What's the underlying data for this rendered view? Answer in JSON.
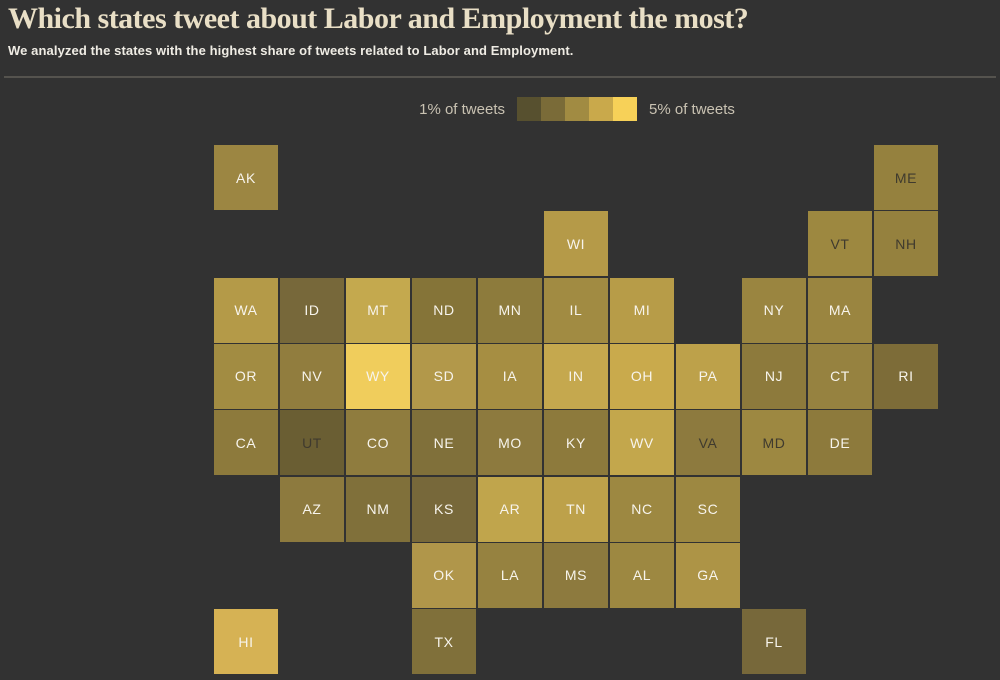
{
  "page": {
    "background": "#323232"
  },
  "header": {
    "title": "Which states tweet about Labor and Employment the most?",
    "subtitle": "We analyzed the states with the highest share of tweets related to Labor and Employment."
  },
  "legend": {
    "min_label": "1% of tweets",
    "max_label": "5% of tweets",
    "swatches": [
      "#57502f",
      "#7a6b38",
      "#a18b42",
      "#c9a94b",
      "#f7d158"
    ]
  },
  "chart_data": {
    "type": "heatmap",
    "subtype": "tile-grid-cartogram-usa",
    "title": "Which states tweet about Labor and Employment the most?",
    "unit": "% of tweets",
    "scale": {
      "min_pct": 1,
      "max_pct": 5,
      "colors": [
        "#57502f",
        "#7a6b38",
        "#a18b42",
        "#c9a94b",
        "#f7d158"
      ]
    },
    "states": [
      {
        "abbr": "AK",
        "row": 0,
        "col": 0,
        "color": "#9c8642",
        "text": "light",
        "value_pct_est": 2.5
      },
      {
        "abbr": "ME",
        "row": 0,
        "col": 10,
        "color": "#95813e",
        "text": "dark",
        "value_pct_est": 2.3
      },
      {
        "abbr": "WI",
        "row": 1,
        "col": 5,
        "color": "#b59a48",
        "text": "light",
        "value_pct_est": 3.5
      },
      {
        "abbr": "VT",
        "row": 1,
        "col": 9,
        "color": "#9d8840",
        "text": "dark",
        "value_pct_est": 2.6
      },
      {
        "abbr": "NH",
        "row": 1,
        "col": 10,
        "color": "#95813e",
        "text": "dark",
        "value_pct_est": 2.3
      },
      {
        "abbr": "WA",
        "row": 2,
        "col": 0,
        "color": "#b49a48",
        "text": "light",
        "value_pct_est": 3.4
      },
      {
        "abbr": "ID",
        "row": 2,
        "col": 1,
        "color": "#77683a",
        "text": "light",
        "value_pct_est": 1.6
      },
      {
        "abbr": "MT",
        "row": 2,
        "col": 2,
        "color": "#c4a94e",
        "text": "light",
        "value_pct_est": 3.9
      },
      {
        "abbr": "ND",
        "row": 2,
        "col": 3,
        "color": "#857438",
        "text": "light",
        "value_pct_est": 1.9
      },
      {
        "abbr": "MN",
        "row": 2,
        "col": 4,
        "color": "#8d7b3c",
        "text": "light",
        "value_pct_est": 2.1
      },
      {
        "abbr": "IL",
        "row": 2,
        "col": 5,
        "color": "#a18b42",
        "text": "light",
        "value_pct_est": 3.0
      },
      {
        "abbr": "MI",
        "row": 2,
        "col": 6,
        "color": "#b79c48",
        "text": "light",
        "value_pct_est": 3.5
      },
      {
        "abbr": "NY",
        "row": 2,
        "col": 8,
        "color": "#9a8540",
        "text": "light",
        "value_pct_est": 2.5
      },
      {
        "abbr": "MA",
        "row": 2,
        "col": 9,
        "color": "#9a8540",
        "text": "light",
        "value_pct_est": 2.5
      },
      {
        "abbr": "OR",
        "row": 3,
        "col": 0,
        "color": "#a28c42",
        "text": "light",
        "value_pct_est": 3.0
      },
      {
        "abbr": "NV",
        "row": 3,
        "col": 1,
        "color": "#917d3e",
        "text": "light",
        "value_pct_est": 2.2
      },
      {
        "abbr": "WY",
        "row": 3,
        "col": 2,
        "color": "#f0cd5c",
        "text": "light",
        "value_pct_est": 5.0
      },
      {
        "abbr": "SD",
        "row": 3,
        "col": 3,
        "color": "#b2984a",
        "text": "light",
        "value_pct_est": 3.4
      },
      {
        "abbr": "IA",
        "row": 3,
        "col": 4,
        "color": "#a68e42",
        "text": "light",
        "value_pct_est": 3.1
      },
      {
        "abbr": "IN",
        "row": 3,
        "col": 5,
        "color": "#c5a84e",
        "text": "light",
        "value_pct_est": 3.9
      },
      {
        "abbr": "OH",
        "row": 3,
        "col": 6,
        "color": "#c9aa4c",
        "text": "light",
        "value_pct_est": 4.0
      },
      {
        "abbr": "PA",
        "row": 3,
        "col": 7,
        "color": "#bda14a",
        "text": "light",
        "value_pct_est": 3.7
      },
      {
        "abbr": "NJ",
        "row": 3,
        "col": 8,
        "color": "#8d7a3c",
        "text": "light",
        "value_pct_est": 2.1
      },
      {
        "abbr": "CT",
        "row": 3,
        "col": 9,
        "color": "#968240",
        "text": "light",
        "value_pct_est": 2.4
      },
      {
        "abbr": "RI",
        "row": 3,
        "col": 10,
        "color": "#7d6c38",
        "text": "light",
        "value_pct_est": 1.7
      },
      {
        "abbr": "CA",
        "row": 4,
        "col": 0,
        "color": "#8d7a3c",
        "text": "light",
        "value_pct_est": 2.1
      },
      {
        "abbr": "UT",
        "row": 4,
        "col": 1,
        "color": "#6a5e33",
        "text": "dark",
        "value_pct_est": 1.3
      },
      {
        "abbr": "CO",
        "row": 4,
        "col": 2,
        "color": "#8f7c3e",
        "text": "light",
        "value_pct_est": 2.2
      },
      {
        "abbr": "NE",
        "row": 4,
        "col": 3,
        "color": "#80703a",
        "text": "light",
        "value_pct_est": 1.8
      },
      {
        "abbr": "MO",
        "row": 4,
        "col": 4,
        "color": "#8d7a3e",
        "text": "light",
        "value_pct_est": 2.1
      },
      {
        "abbr": "KY",
        "row": 4,
        "col": 5,
        "color": "#8d7a3c",
        "text": "light",
        "value_pct_est": 2.1
      },
      {
        "abbr": "WV",
        "row": 4,
        "col": 6,
        "color": "#c3a74c",
        "text": "light",
        "value_pct_est": 3.9
      },
      {
        "abbr": "VA",
        "row": 4,
        "col": 7,
        "color": "#8d7a3e",
        "text": "dark",
        "value_pct_est": 2.1
      },
      {
        "abbr": "MD",
        "row": 4,
        "col": 8,
        "color": "#9d8841",
        "text": "dark",
        "value_pct_est": 2.6
      },
      {
        "abbr": "DE",
        "row": 4,
        "col": 9,
        "color": "#8d7a3c",
        "text": "light",
        "value_pct_est": 2.1
      },
      {
        "abbr": "AZ",
        "row": 5,
        "col": 1,
        "color": "#8d7a3e",
        "text": "light",
        "value_pct_est": 2.1
      },
      {
        "abbr": "NM",
        "row": 5,
        "col": 2,
        "color": "#80703a",
        "text": "light",
        "value_pct_est": 1.8
      },
      {
        "abbr": "KS",
        "row": 5,
        "col": 3,
        "color": "#77683a",
        "text": "light",
        "value_pct_est": 1.6
      },
      {
        "abbr": "AR",
        "row": 5,
        "col": 4,
        "color": "#c0a54c",
        "text": "light",
        "value_pct_est": 3.8
      },
      {
        "abbr": "TN",
        "row": 5,
        "col": 5,
        "color": "#bda14a",
        "text": "light",
        "value_pct_est": 3.7
      },
      {
        "abbr": "NC",
        "row": 5,
        "col": 6,
        "color": "#9d8841",
        "text": "light",
        "value_pct_est": 2.6
      },
      {
        "abbr": "SC",
        "row": 5,
        "col": 7,
        "color": "#9d8841",
        "text": "light",
        "value_pct_est": 2.6
      },
      {
        "abbr": "OK",
        "row": 6,
        "col": 3,
        "color": "#b0964a",
        "text": "light",
        "value_pct_est": 3.3
      },
      {
        "abbr": "LA",
        "row": 6,
        "col": 4,
        "color": "#968240",
        "text": "light",
        "value_pct_est": 2.4
      },
      {
        "abbr": "MS",
        "row": 6,
        "col": 5,
        "color": "#8d7a3e",
        "text": "light",
        "value_pct_est": 2.1
      },
      {
        "abbr": "AL",
        "row": 6,
        "col": 6,
        "color": "#9d8841",
        "text": "light",
        "value_pct_est": 2.6
      },
      {
        "abbr": "GA",
        "row": 6,
        "col": 7,
        "color": "#ad9446",
        "text": "light",
        "value_pct_est": 3.2
      },
      {
        "abbr": "HI",
        "row": 7,
        "col": 0,
        "color": "#d6b254",
        "text": "light",
        "value_pct_est": 4.3
      },
      {
        "abbr": "TX",
        "row": 7,
        "col": 3,
        "color": "#80703a",
        "text": "light",
        "value_pct_est": 1.8
      },
      {
        "abbr": "FL",
        "row": 7,
        "col": 8,
        "color": "#77683a",
        "text": "light",
        "value_pct_est": 1.6
      }
    ]
  }
}
